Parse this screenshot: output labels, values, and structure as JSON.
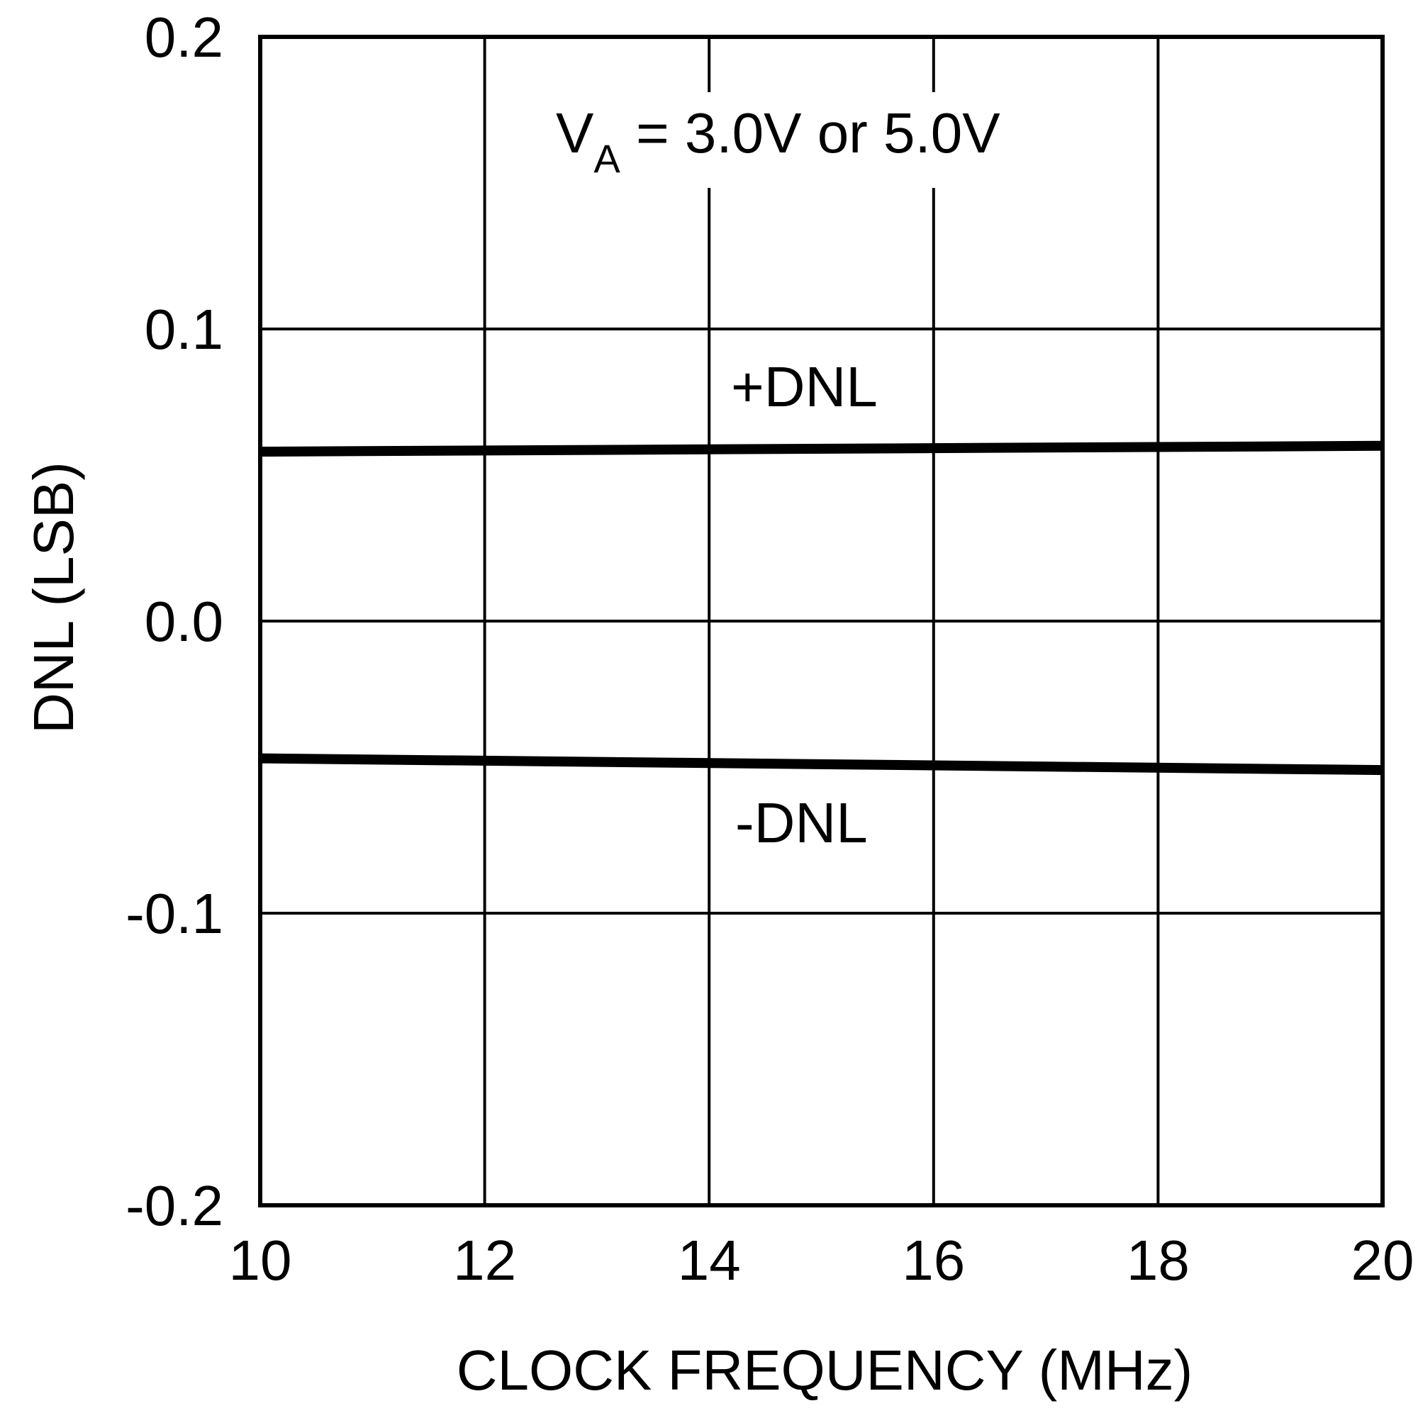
{
  "chart_data": {
    "type": "line",
    "title": "",
    "xlabel": "CLOCK FREQUENCY (MHz)",
    "ylabel": "DNL (LSB)",
    "xlim": [
      10,
      20
    ],
    "ylim": [
      -0.2,
      0.2
    ],
    "x_ticks": [
      "10",
      "12",
      "14",
      "16",
      "18",
      "20"
    ],
    "y_ticks": [
      "0.2",
      "0.1",
      "0.0",
      "-0.1",
      "-0.2"
    ],
    "grid": true,
    "annotation": {
      "main": "V",
      "sub": "A",
      "rest": " = 3.0V or 5.0V"
    },
    "series": [
      {
        "name": "+DNL",
        "x": [
          10,
          20
        ],
        "y": [
          0.058,
          0.06
        ]
      },
      {
        "name": "-DNL",
        "x": [
          10,
          20
        ],
        "y": [
          -0.047,
          -0.051
        ]
      }
    ],
    "colors": {
      "line": "#000000",
      "background": "#ffffff"
    }
  }
}
